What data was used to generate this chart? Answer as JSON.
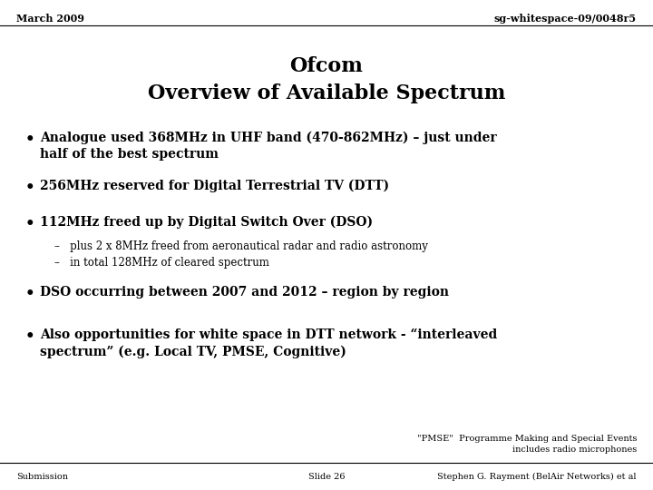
{
  "bg_color": "#ffffff",
  "header_left": "March 2009",
  "header_right": "sg-whitespace-09/0048r5",
  "title_line1": "Ofcom",
  "title_line2": "Overview of Available Spectrum",
  "bullets": [
    {
      "level": 0,
      "bold": true,
      "text": "Analogue used 368MHz in UHF band (470-862MHz) – just under\nhalf of the best spectrum"
    },
    {
      "level": 0,
      "bold": true,
      "text": "256MHz reserved for Digital Terrestrial TV (DTT)"
    },
    {
      "level": 0,
      "bold": true,
      "text": "112MHz freed up by Digital Switch Over (DSO)"
    },
    {
      "level": 1,
      "bold": false,
      "text": "–   plus 2 x 8MHz freed from aeronautical radar and radio astronomy"
    },
    {
      "level": 1,
      "bold": false,
      "text": "–   in total 128MHz of cleared spectrum"
    },
    {
      "level": 0,
      "bold": true,
      "text": "DSO occurring between 2007 and 2012 – region by region"
    },
    {
      "level": 0,
      "bold": true,
      "text": "Also opportunities for white space in DTT network - “interleaved\nspectrum” (e.g. Local TV, PMSE, Cognitive)"
    }
  ],
  "footer_left": "Submission",
  "footer_center": "Slide 26",
  "footer_right": "Stephen G. Rayment (BelAir Networks) et al",
  "footnote_right_line1": "\"PMSE\"  Programme Making and Special Events",
  "footnote_right_line2": "includes radio microphones",
  "header_fontsize": 8,
  "title_fontsize": 16,
  "bullet_fontsize": 10,
  "sub_bullet_fontsize": 8.5,
  "footer_fontsize": 7,
  "footnote_fontsize": 7
}
